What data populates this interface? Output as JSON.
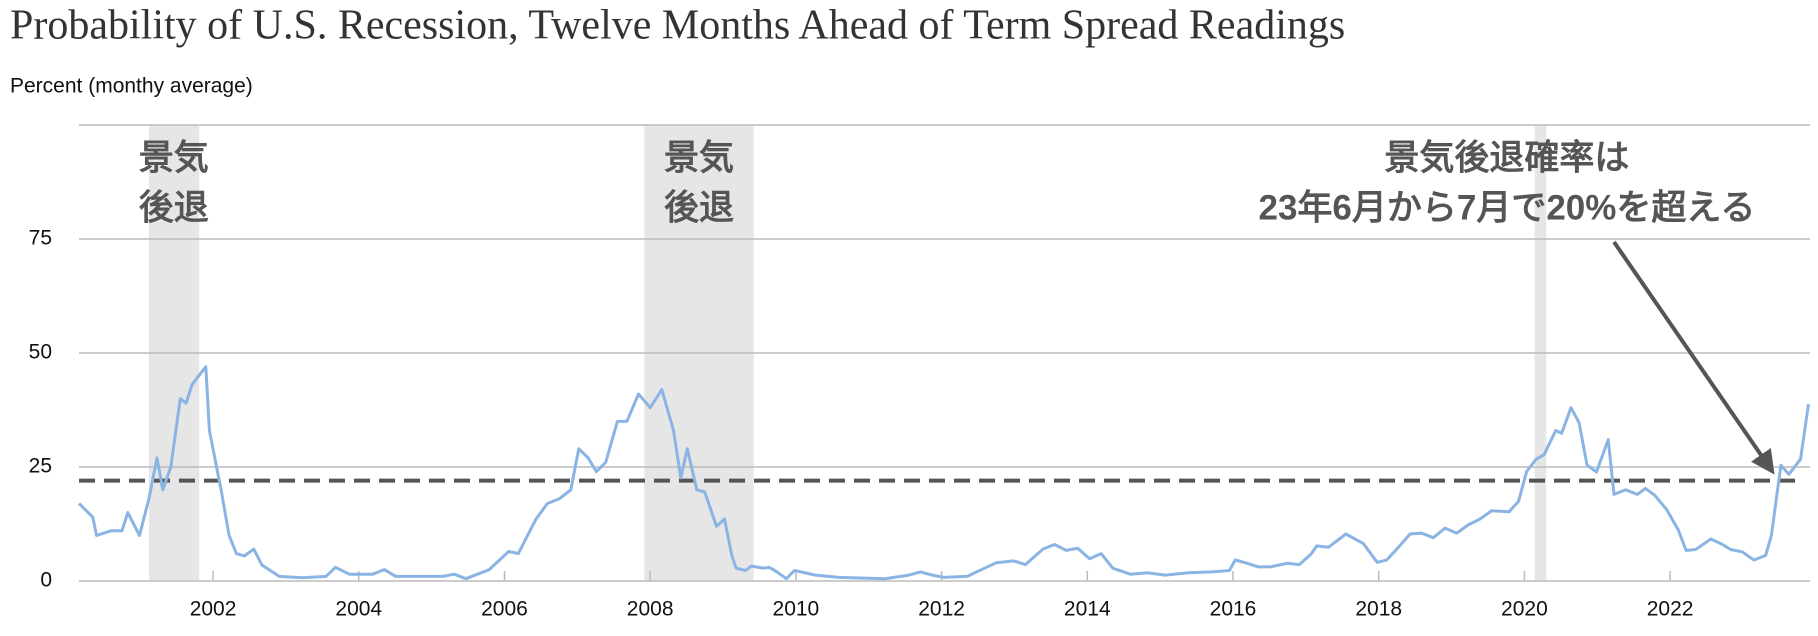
{
  "chart_data": {
    "type": "line",
    "title": "Probability of U.S. Recession, Twelve Months Ahead of Term Spread Readings",
    "subtitle": "Percent (monthy average)",
    "xlim": [
      2000.16,
      2023.92
    ],
    "xticks": [
      2002,
      2004,
      2006,
      2008,
      2010,
      2012,
      2014,
      2016,
      2018,
      2020,
      2022
    ],
    "ylim": [
      0,
      100
    ],
    "yticks": [
      0,
      25,
      50,
      75
    ],
    "grid": true,
    "recessions": [
      [
        2001.12,
        2001.81
      ],
      [
        2007.92,
        2009.42
      ],
      [
        2020.14,
        2020.3
      ]
    ],
    "threshold": 22,
    "annotations": [
      {
        "x": 2001.46,
        "lines": [
          "景気",
          "後退"
        ]
      },
      {
        "x": 2008.67,
        "lines": [
          "景気",
          "後退"
        ]
      },
      {
        "x": 2019.76,
        "lines": [
          "景気後退確率は",
          "23年6月から7月で20%を超える"
        ]
      }
    ],
    "series": [
      {
        "name": "Probability of recession",
        "color": "#8ab4e3",
        "x": [
          2000.16,
          2000.35,
          2000.4,
          2000.6,
          2000.75,
          2000.83,
          2000.99,
          2001.12,
          2001.23,
          2001.31,
          2001.42,
          2001.55,
          2001.63,
          2001.71,
          2001.9,
          2001.95,
          2002.11,
          2002.22,
          2002.32,
          2002.43,
          2002.56,
          2002.67,
          2002.91,
          2003.23,
          2003.55,
          2003.68,
          2003.87,
          2004.19,
          2004.35,
          2004.51,
          2005.15,
          2005.31,
          2005.47,
          2005.79,
          2006.06,
          2006.19,
          2006.43,
          2006.59,
          2006.75,
          2006.91,
          2007.02,
          2007.15,
          2007.26,
          2007.39,
          2007.55,
          2007.68,
          2007.84,
          2008.0,
          2008.16,
          2008.32,
          2008.42,
          2008.51,
          2008.64,
          2008.75,
          2008.91,
          2009.02,
          2009.12,
          2009.18,
          2009.31,
          2009.39,
          2009.55,
          2009.63,
          2009.71,
          2009.87,
          2009.98,
          2010.27,
          2010.59,
          2011.23,
          2011.55,
          2011.71,
          2011.87,
          2012.03,
          2012.35,
          2012.59,
          2012.75,
          2012.99,
          2013.15,
          2013.39,
          2013.55,
          2013.71,
          2013.87,
          2014.03,
          2014.19,
          2014.35,
          2014.59,
          2014.83,
          2015.07,
          2015.39,
          2015.71,
          2015.95,
          2016.03,
          2016.19,
          2016.35,
          2016.51,
          2016.75,
          2016.91,
          2017.07,
          2017.15,
          2017.31,
          2017.55,
          2017.79,
          2017.98,
          2018.11,
          2018.27,
          2018.43,
          2018.59,
          2018.75,
          2018.91,
          2019.07,
          2019.23,
          2019.39,
          2019.55,
          2019.79,
          2019.92,
          2020.03,
          2020.16,
          2020.27,
          2020.43,
          2020.51,
          2020.64,
          2020.75,
          2020.86,
          2020.99,
          2021.15,
          2021.23,
          2021.39,
          2021.55,
          2021.66,
          2021.79,
          2021.95,
          2022.11,
          2022.22,
          2022.35,
          2022.56,
          2022.72,
          2022.83,
          2022.99,
          2023.15,
          2023.31,
          2023.39,
          2023.52,
          2023.63,
          2023.79,
          2023.9
        ],
        "values": [
          17,
          14,
          10,
          11,
          11,
          15,
          10,
          18,
          27,
          20,
          25,
          40,
          39,
          43,
          47,
          33,
          20,
          10,
          6,
          5.5,
          7,
          3.5,
          1,
          0.7,
          1,
          3,
          1.5,
          1.5,
          2.5,
          1,
          1,
          1.5,
          0.5,
          2.5,
          6.5,
          6,
          13.5,
          17,
          18,
          20,
          29,
          27,
          24,
          26,
          35,
          35,
          41,
          38,
          42,
          33,
          22.6,
          29,
          20,
          19.5,
          12,
          13.6,
          5.6,
          2.8,
          2.3,
          3.3,
          2.8,
          3,
          2.3,
          0.5,
          2.3,
          1.3,
          0.8,
          0.5,
          1.3,
          2,
          1.3,
          0.8,
          1,
          2.8,
          4,
          4.4,
          3.6,
          7,
          8,
          6.7,
          7.2,
          4.9,
          6,
          2.8,
          1.5,
          1.8,
          1.3,
          1.8,
          2,
          2.3,
          4.6,
          3.9,
          3.1,
          3.1,
          3.9,
          3.6,
          5.9,
          7.7,
          7.4,
          10.3,
          8.2,
          4.1,
          4.6,
          7.4,
          10.3,
          10.5,
          9.5,
          11.6,
          10.5,
          12.3,
          13.6,
          15.4,
          15.2,
          17.5,
          24,
          26.7,
          27.7,
          33,
          32.4,
          38,
          34.7,
          25.4,
          23.9,
          31,
          19,
          20,
          19,
          20.3,
          18.8,
          15.7,
          11.3,
          6.7,
          6.9,
          9.2,
          8,
          6.9,
          6.4,
          4.6,
          5.6,
          10,
          25.4,
          23.4,
          26.7,
          38.8
        ]
      }
    ]
  }
}
